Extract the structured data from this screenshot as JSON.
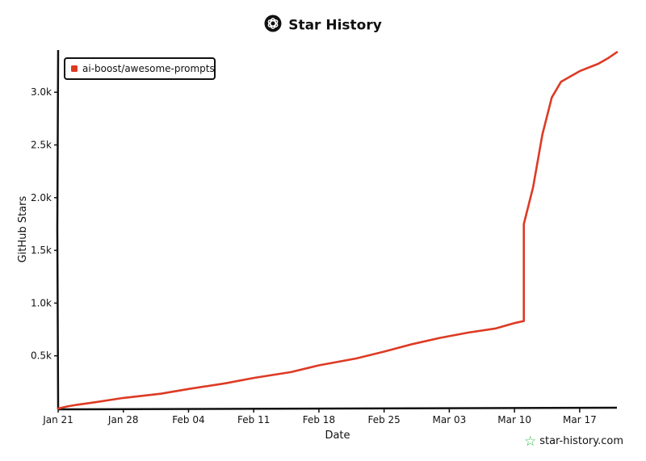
{
  "header": {
    "title": "Star History"
  },
  "watermark": {
    "text": "star-history.com"
  },
  "colors": {
    "series": "#dd3a24",
    "axis": "#111111"
  },
  "chart_data": {
    "type": "line",
    "title": "Star History",
    "xlabel": "Date",
    "ylabel": "GitHub Stars",
    "x_ticks": [
      "Jan 21",
      "Jan 28",
      "Feb 04",
      "Feb 11",
      "Feb 18",
      "Feb 25",
      "Mar 03",
      "Mar 10",
      "Mar 17"
    ],
    "y_ticks": [
      "0.5k",
      "1.0k",
      "1.5k",
      "2.0k",
      "2.5k",
      "3.0k"
    ],
    "y_tick_values": [
      500,
      1000,
      1500,
      2000,
      2500,
      3000
    ],
    "ylim": [
      0,
      3400
    ],
    "xlim": [
      "2025-01-21",
      "2025-03-22"
    ],
    "grid": false,
    "legend": "top-left",
    "series": [
      {
        "name": "ai-boost/awesome-prompts",
        "color": "#dd3a24",
        "x": [
          "2025-01-21",
          "2025-01-22",
          "2025-01-23",
          "2025-01-25",
          "2025-01-28",
          "2025-02-01",
          "2025-02-04",
          "2025-02-08",
          "2025-02-11",
          "2025-02-15",
          "2025-02-18",
          "2025-02-22",
          "2025-02-25",
          "2025-02-28",
          "2025-03-03",
          "2025-03-06",
          "2025-03-09",
          "2025-03-11",
          "2025-03-12",
          "2025-03-12",
          "2025-03-13",
          "2025-03-14",
          "2025-03-15",
          "2025-03-16",
          "2025-03-18",
          "2025-03-20",
          "2025-03-21",
          "2025-03-22"
        ],
        "y": [
          0,
          20,
          35,
          60,
          100,
          140,
          185,
          240,
          290,
          345,
          410,
          475,
          540,
          610,
          670,
          720,
          760,
          810,
          830,
          1750,
          2100,
          2600,
          2950,
          3100,
          3200,
          3270,
          3320,
          3380
        ]
      }
    ]
  }
}
